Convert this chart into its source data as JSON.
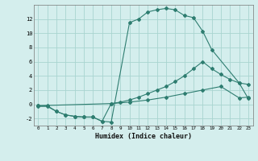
{
  "line1_x": [
    0,
    1,
    2,
    3,
    4,
    5,
    6,
    7,
    8,
    10,
    11,
    12,
    13,
    14,
    15,
    16,
    17,
    18,
    19,
    22,
    23
  ],
  "line1_y": [
    -0.3,
    -0.3,
    -1.0,
    -1.5,
    -1.7,
    -1.8,
    -1.8,
    -2.4,
    -2.5,
    11.5,
    12.0,
    13.0,
    13.3,
    13.5,
    13.3,
    12.5,
    12.2,
    10.3,
    7.7,
    3.0,
    0.8
  ],
  "line2_x": [
    0,
    8,
    9,
    10,
    11,
    12,
    13,
    14,
    15,
    16,
    17,
    18,
    19,
    20,
    21,
    22,
    23
  ],
  "line2_y": [
    -0.2,
    0.1,
    0.3,
    0.6,
    1.0,
    1.5,
    2.0,
    2.5,
    3.2,
    4.0,
    5.0,
    6.0,
    5.0,
    4.2,
    3.5,
    3.0,
    2.8
  ],
  "line3_x": [
    0,
    1,
    2,
    3,
    4,
    5,
    6,
    7,
    8,
    10,
    12,
    14,
    16,
    18,
    20,
    22,
    23
  ],
  "line3_y": [
    -0.2,
    -0.2,
    -1.0,
    -1.5,
    -1.7,
    -1.8,
    -1.8,
    -2.4,
    0.1,
    0.3,
    0.6,
    1.0,
    1.5,
    2.0,
    2.5,
    0.9,
    1.0
  ],
  "line_color": "#2e7d70",
  "bg_color": "#d4eeed",
  "grid_color": "#a8d4d0",
  "xlabel": "Humidex (Indice chaleur)",
  "xlim": [
    -0.5,
    23.5
  ],
  "ylim": [
    -3,
    14
  ],
  "yticks": [
    -2,
    0,
    2,
    4,
    6,
    8,
    10,
    12
  ],
  "xticks": [
    0,
    1,
    2,
    3,
    4,
    5,
    6,
    7,
    8,
    9,
    10,
    11,
    12,
    13,
    14,
    15,
    16,
    17,
    18,
    19,
    20,
    21,
    22,
    23
  ]
}
